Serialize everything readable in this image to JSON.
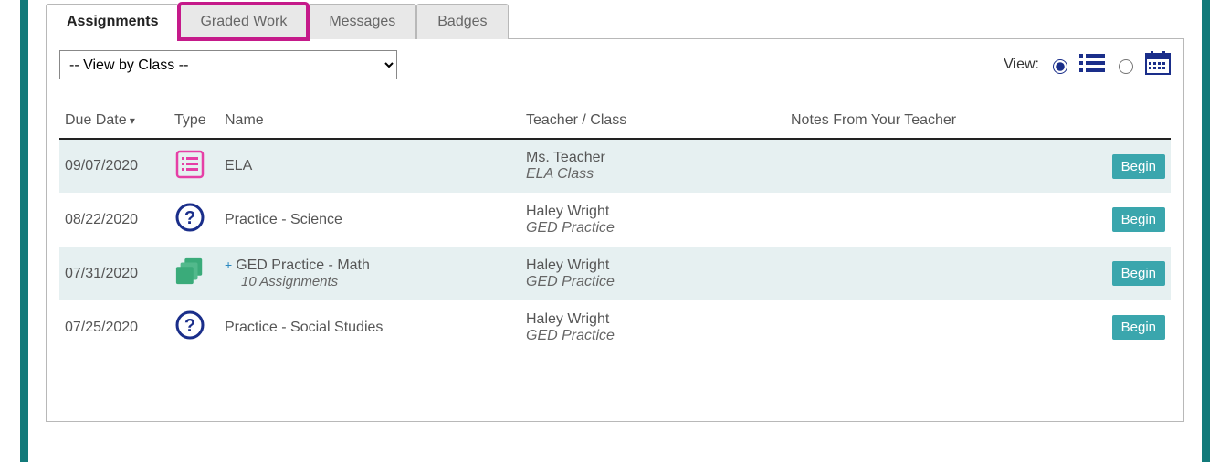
{
  "colors": {
    "teal_bar": "#127a7a",
    "tab_active_text": "#222222",
    "tab_inactive_text": "#666666",
    "tab_inactive_bg": "#e8e8e8",
    "highlight_border": "#c51a8a",
    "icon_navy": "#1a2e8a",
    "row_alt_bg": "#e6f0f1",
    "begin_btn_bg": "#3aa6ad",
    "pink_icon": "#e63fa6",
    "green_icon": "#3aab7a",
    "plus_blue": "#2a88c0",
    "text": "#555555",
    "header_border": "#222222"
  },
  "tabs": [
    {
      "label": "Assignments",
      "active": true,
      "highlight": false
    },
    {
      "label": "Graded Work",
      "active": false,
      "highlight": true
    },
    {
      "label": "Messages",
      "active": false,
      "highlight": false
    },
    {
      "label": "Badges",
      "active": false,
      "highlight": false
    }
  ],
  "filter": {
    "selected": "-- View by Class --"
  },
  "view_switch": {
    "label": "View:",
    "list_selected": true,
    "calendar_selected": false
  },
  "columns": {
    "due_date": "Due Date",
    "type": "Type",
    "name": "Name",
    "teacher_class": "Teacher / Class",
    "notes": "Notes From Your Teacher"
  },
  "action_label": "Begin",
  "rows": [
    {
      "due": "09/07/2020",
      "icon": "list-pink",
      "name": "ELA",
      "sub": "",
      "has_plus": false,
      "teacher": "Ms. Teacher",
      "class": "ELA Class",
      "alt": true
    },
    {
      "due": "08/22/2020",
      "icon": "question",
      "name": "Practice - Science",
      "sub": "",
      "has_plus": false,
      "teacher": "Haley Wright",
      "class": "GED Practice",
      "alt": false
    },
    {
      "due": "07/31/2020",
      "icon": "stack-green",
      "name": "GED Practice - Math",
      "sub": "10 Assignments",
      "has_plus": true,
      "teacher": "Haley Wright",
      "class": "GED Practice",
      "alt": true
    },
    {
      "due": "07/25/2020",
      "icon": "question",
      "name": "Practice - Social Studies",
      "sub": "",
      "has_plus": false,
      "teacher": "Haley Wright",
      "class": "GED Practice",
      "alt": false
    }
  ]
}
